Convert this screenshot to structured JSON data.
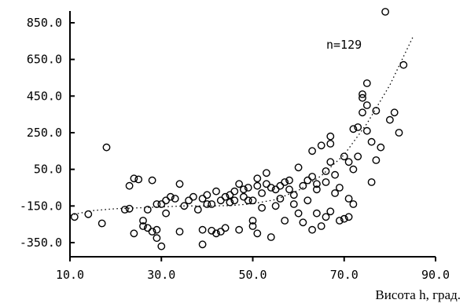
{
  "chart_data": {
    "type": "scatter",
    "title": "",
    "xlabel": "Висота h, град.",
    "ylabel": "",
    "xlim": [
      10,
      90
    ],
    "ylim": [
      -380,
      950
    ],
    "x_ticks": [
      10,
      30,
      50,
      70,
      90
    ],
    "x_tick_labels": [
      "10.0",
      "30.0",
      "50.0",
      "70.0",
      "90.0"
    ],
    "y_ticks": [
      850,
      650,
      450,
      250,
      50,
      -150,
      -350
    ],
    "y_tick_labels": [
      "850.0",
      "650.0",
      "450.0",
      "250.0",
      "50.0",
      "-150.0",
      "-350.0"
    ],
    "grid": false,
    "annotation": "n=129",
    "marker": "open-circle",
    "trend": {
      "style": "dotted",
      "x": [
        10,
        15,
        20,
        25,
        30,
        35,
        40,
        45,
        50,
        55,
        60,
        65,
        70,
        75,
        80,
        85
      ],
      "y": [
        -200,
        -175,
        -165,
        -160,
        -155,
        -150,
        -150,
        -148,
        -138,
        -115,
        -65,
        15,
        130,
        300,
        510,
        770
      ]
    },
    "points": [
      [
        11,
        -210
      ],
      [
        14,
        -195
      ],
      [
        17,
        -245
      ],
      [
        18,
        170
      ],
      [
        22,
        -170
      ],
      [
        23,
        -165
      ],
      [
        23,
        -40
      ],
      [
        24,
        -300
      ],
      [
        24,
        0
      ],
      [
        25,
        -5
      ],
      [
        26,
        -230
      ],
      [
        26,
        -260
      ],
      [
        27,
        -270
      ],
      [
        27,
        -170
      ],
      [
        28,
        -290
      ],
      [
        28,
        -10
      ],
      [
        29,
        -325
      ],
      [
        29,
        -280
      ],
      [
        29,
        -140
      ],
      [
        30,
        -370
      ],
      [
        30,
        -140
      ],
      [
        31,
        -190
      ],
      [
        31,
        -120
      ],
      [
        32,
        -100
      ],
      [
        33,
        -110
      ],
      [
        34,
        -290
      ],
      [
        34,
        -30
      ],
      [
        35,
        -150
      ],
      [
        36,
        -120
      ],
      [
        37,
        -100
      ],
      [
        38,
        -170
      ],
      [
        39,
        -360
      ],
      [
        39,
        -280
      ],
      [
        39,
        -110
      ],
      [
        40,
        -90
      ],
      [
        40,
        -140
      ],
      [
        41,
        -285
      ],
      [
        41,
        -140
      ],
      [
        42,
        -300
      ],
      [
        42,
        -70
      ],
      [
        43,
        -290
      ],
      [
        43,
        -120
      ],
      [
        44,
        -270
      ],
      [
        44,
        -100
      ],
      [
        45,
        -130
      ],
      [
        45,
        -90
      ],
      [
        46,
        -120
      ],
      [
        46,
        -70
      ],
      [
        47,
        -280
      ],
      [
        47,
        -30
      ],
      [
        48,
        -100
      ],
      [
        48,
        -60
      ],
      [
        49,
        -120
      ],
      [
        49,
        -50
      ],
      [
        50,
        -230
      ],
      [
        50,
        -260
      ],
      [
        50,
        -120
      ],
      [
        51,
        -40
      ],
      [
        51,
        0
      ],
      [
        51,
        -300
      ],
      [
        52,
        -160
      ],
      [
        52,
        -80
      ],
      [
        53,
        -30
      ],
      [
        53,
        30
      ],
      [
        54,
        -320
      ],
      [
        54,
        -50
      ],
      [
        55,
        -150
      ],
      [
        55,
        -60
      ],
      [
        56,
        -110
      ],
      [
        56,
        -40
      ],
      [
        57,
        -20
      ],
      [
        57,
        -230
      ],
      [
        58,
        -60
      ],
      [
        58,
        -10
      ],
      [
        59,
        -140
      ],
      [
        59,
        -90
      ],
      [
        60,
        60
      ],
      [
        60,
        -190
      ],
      [
        61,
        -40
      ],
      [
        61,
        -240
      ],
      [
        62,
        -10
      ],
      [
        62,
        -120
      ],
      [
        63,
        10
      ],
      [
        63,
        150
      ],
      [
        63,
        -280
      ],
      [
        64,
        -190
      ],
      [
        64,
        -60
      ],
      [
        64,
        -30
      ],
      [
        65,
        180
      ],
      [
        65,
        -260
      ],
      [
        66,
        -20
      ],
      [
        66,
        40
      ],
      [
        66,
        -210
      ],
      [
        67,
        190
      ],
      [
        67,
        -180
      ],
      [
        67,
        230
      ],
      [
        67,
        90
      ],
      [
        68,
        -80
      ],
      [
        68,
        20
      ],
      [
        69,
        -230
      ],
      [
        69,
        -50
      ],
      [
        70,
        -220
      ],
      [
        70,
        120
      ],
      [
        71,
        -210
      ],
      [
        71,
        -110
      ],
      [
        71,
        90
      ],
      [
        72,
        -140
      ],
      [
        72,
        50
      ],
      [
        72,
        270
      ],
      [
        73,
        120
      ],
      [
        73,
        280
      ],
      [
        74,
        360
      ],
      [
        74,
        460
      ],
      [
        74,
        440
      ],
      [
        75,
        520
      ],
      [
        75,
        400
      ],
      [
        75,
        260
      ],
      [
        76,
        200
      ],
      [
        76,
        -20
      ],
      [
        77,
        370
      ],
      [
        77,
        100
      ],
      [
        78,
        170
      ],
      [
        79,
        910
      ],
      [
        80,
        320
      ],
      [
        81,
        360
      ],
      [
        82,
        250
      ],
      [
        83,
        620
      ]
    ]
  }
}
